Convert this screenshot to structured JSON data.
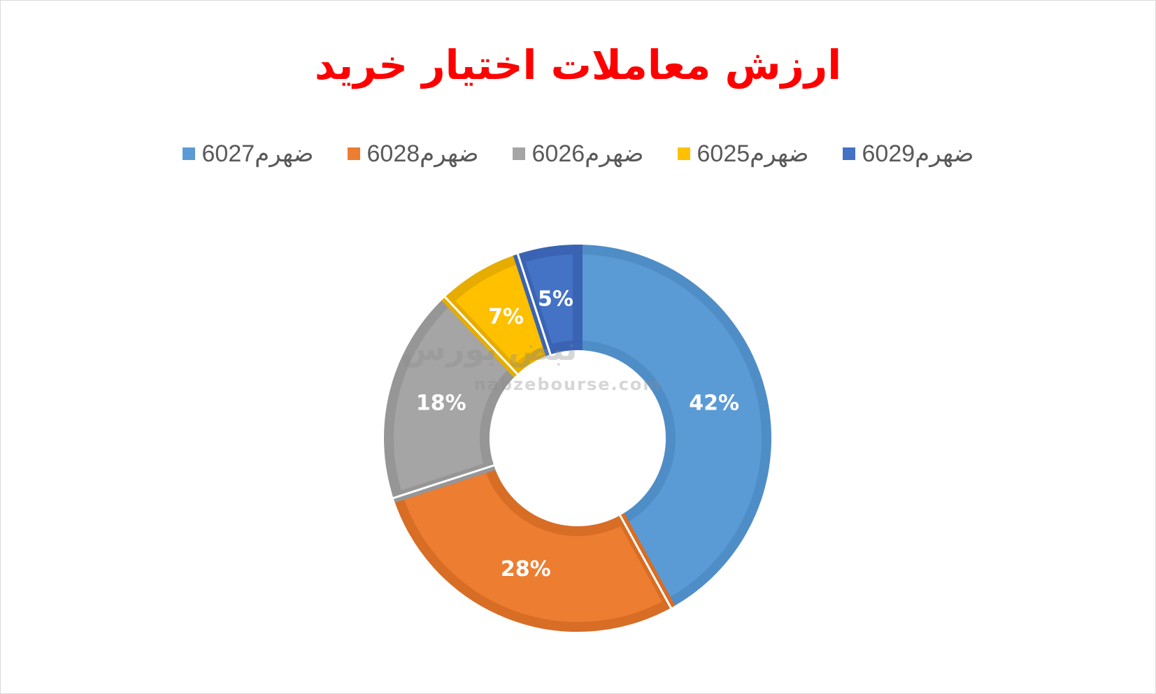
{
  "chart_data": {
    "type": "pie",
    "title": "ارزش معاملات اختیار خرید",
    "legend_position": "top",
    "categories": [
      "ضهرم6027",
      "ضهرم6028",
      "ضهرم6026",
      "ضهرم6025",
      "ضهرم6029"
    ],
    "values": [
      42,
      28,
      18,
      7,
      5
    ],
    "data_labels": [
      "42%",
      "28%",
      "18%",
      "7%",
      "5%"
    ],
    "colors": [
      "#5b9bd5",
      "#ed7d31",
      "#a5a5a5",
      "#ffc000",
      "#4472c4"
    ],
    "border_colors": [
      "#4f8dc7",
      "#d86d25",
      "#969696",
      "#e6ad00",
      "#3a64b3"
    ]
  },
  "watermark": {
    "text_fa": "نبض بورس",
    "url": "nabzebourse.com"
  }
}
